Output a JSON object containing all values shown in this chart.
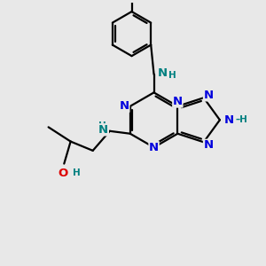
{
  "bg_color": "#e8e8e8",
  "bond_color": "#000000",
  "N_color": "#0000dd",
  "NH_color": "#008080",
  "O_color": "#dd0000",
  "lw": 1.6,
  "fs": 9.5,
  "fsh": 7.5,
  "xlim": [
    0,
    10
  ],
  "ylim": [
    0,
    10
  ]
}
